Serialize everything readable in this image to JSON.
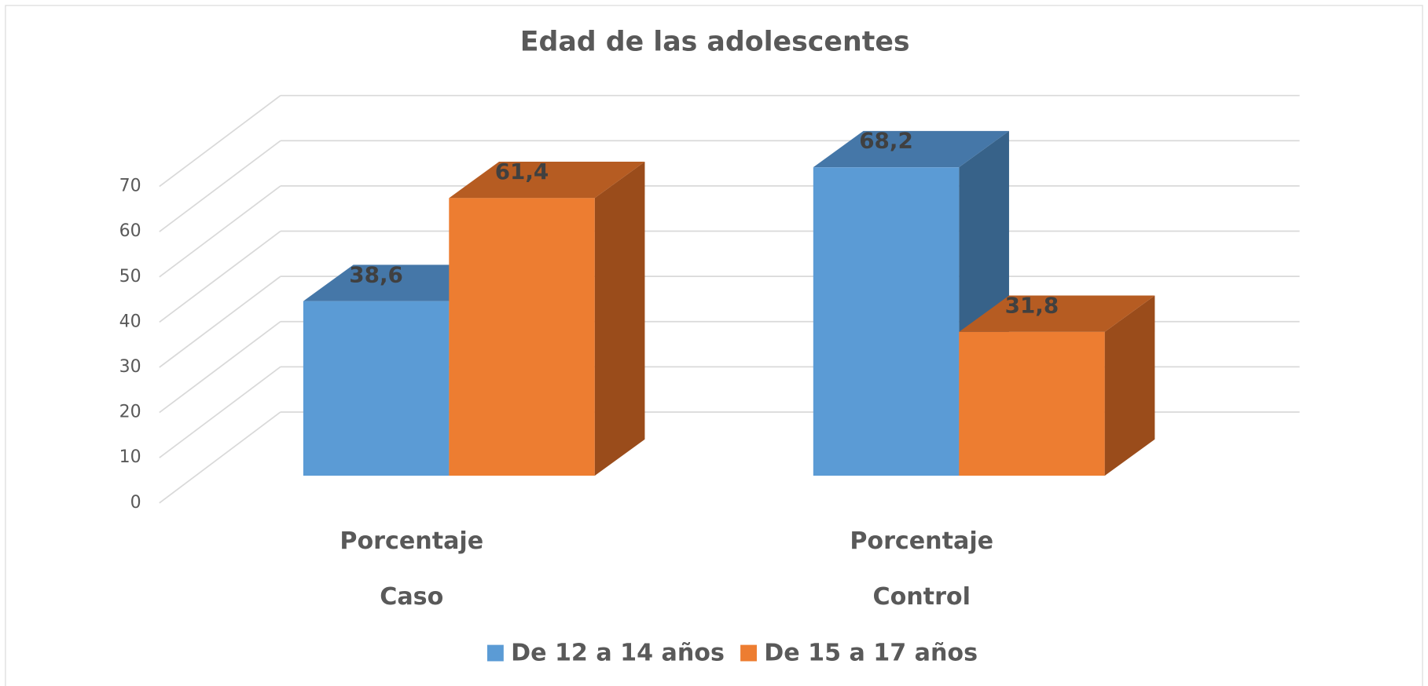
{
  "chart_data": {
    "type": "bar3d",
    "title": "Edad de las adolescentes",
    "categories": [
      "Porcentaje",
      "Porcentaje"
    ],
    "groups": [
      "Caso",
      "Control"
    ],
    "series": [
      {
        "name": "De 12 a 14 años",
        "color": "#5b9bd5",
        "top_color": "#4577a8",
        "side_color": "#376289",
        "values": [
          38.6,
          68.2
        ],
        "value_labels": [
          "38,6",
          "68,2"
        ]
      },
      {
        "name": "De 15 a 17 años",
        "color": "#ed7d31",
        "top_color": "#b65c22",
        "side_color": "#9a4c1b",
        "values": [
          61.4,
          31.8
        ],
        "value_labels": [
          "61,4",
          "31,8"
        ]
      }
    ],
    "ylim": [
      0,
      70
    ],
    "yticks": [
      0,
      10,
      20,
      30,
      40,
      50,
      60,
      70
    ],
    "grid": true,
    "legend": "bottom"
  }
}
